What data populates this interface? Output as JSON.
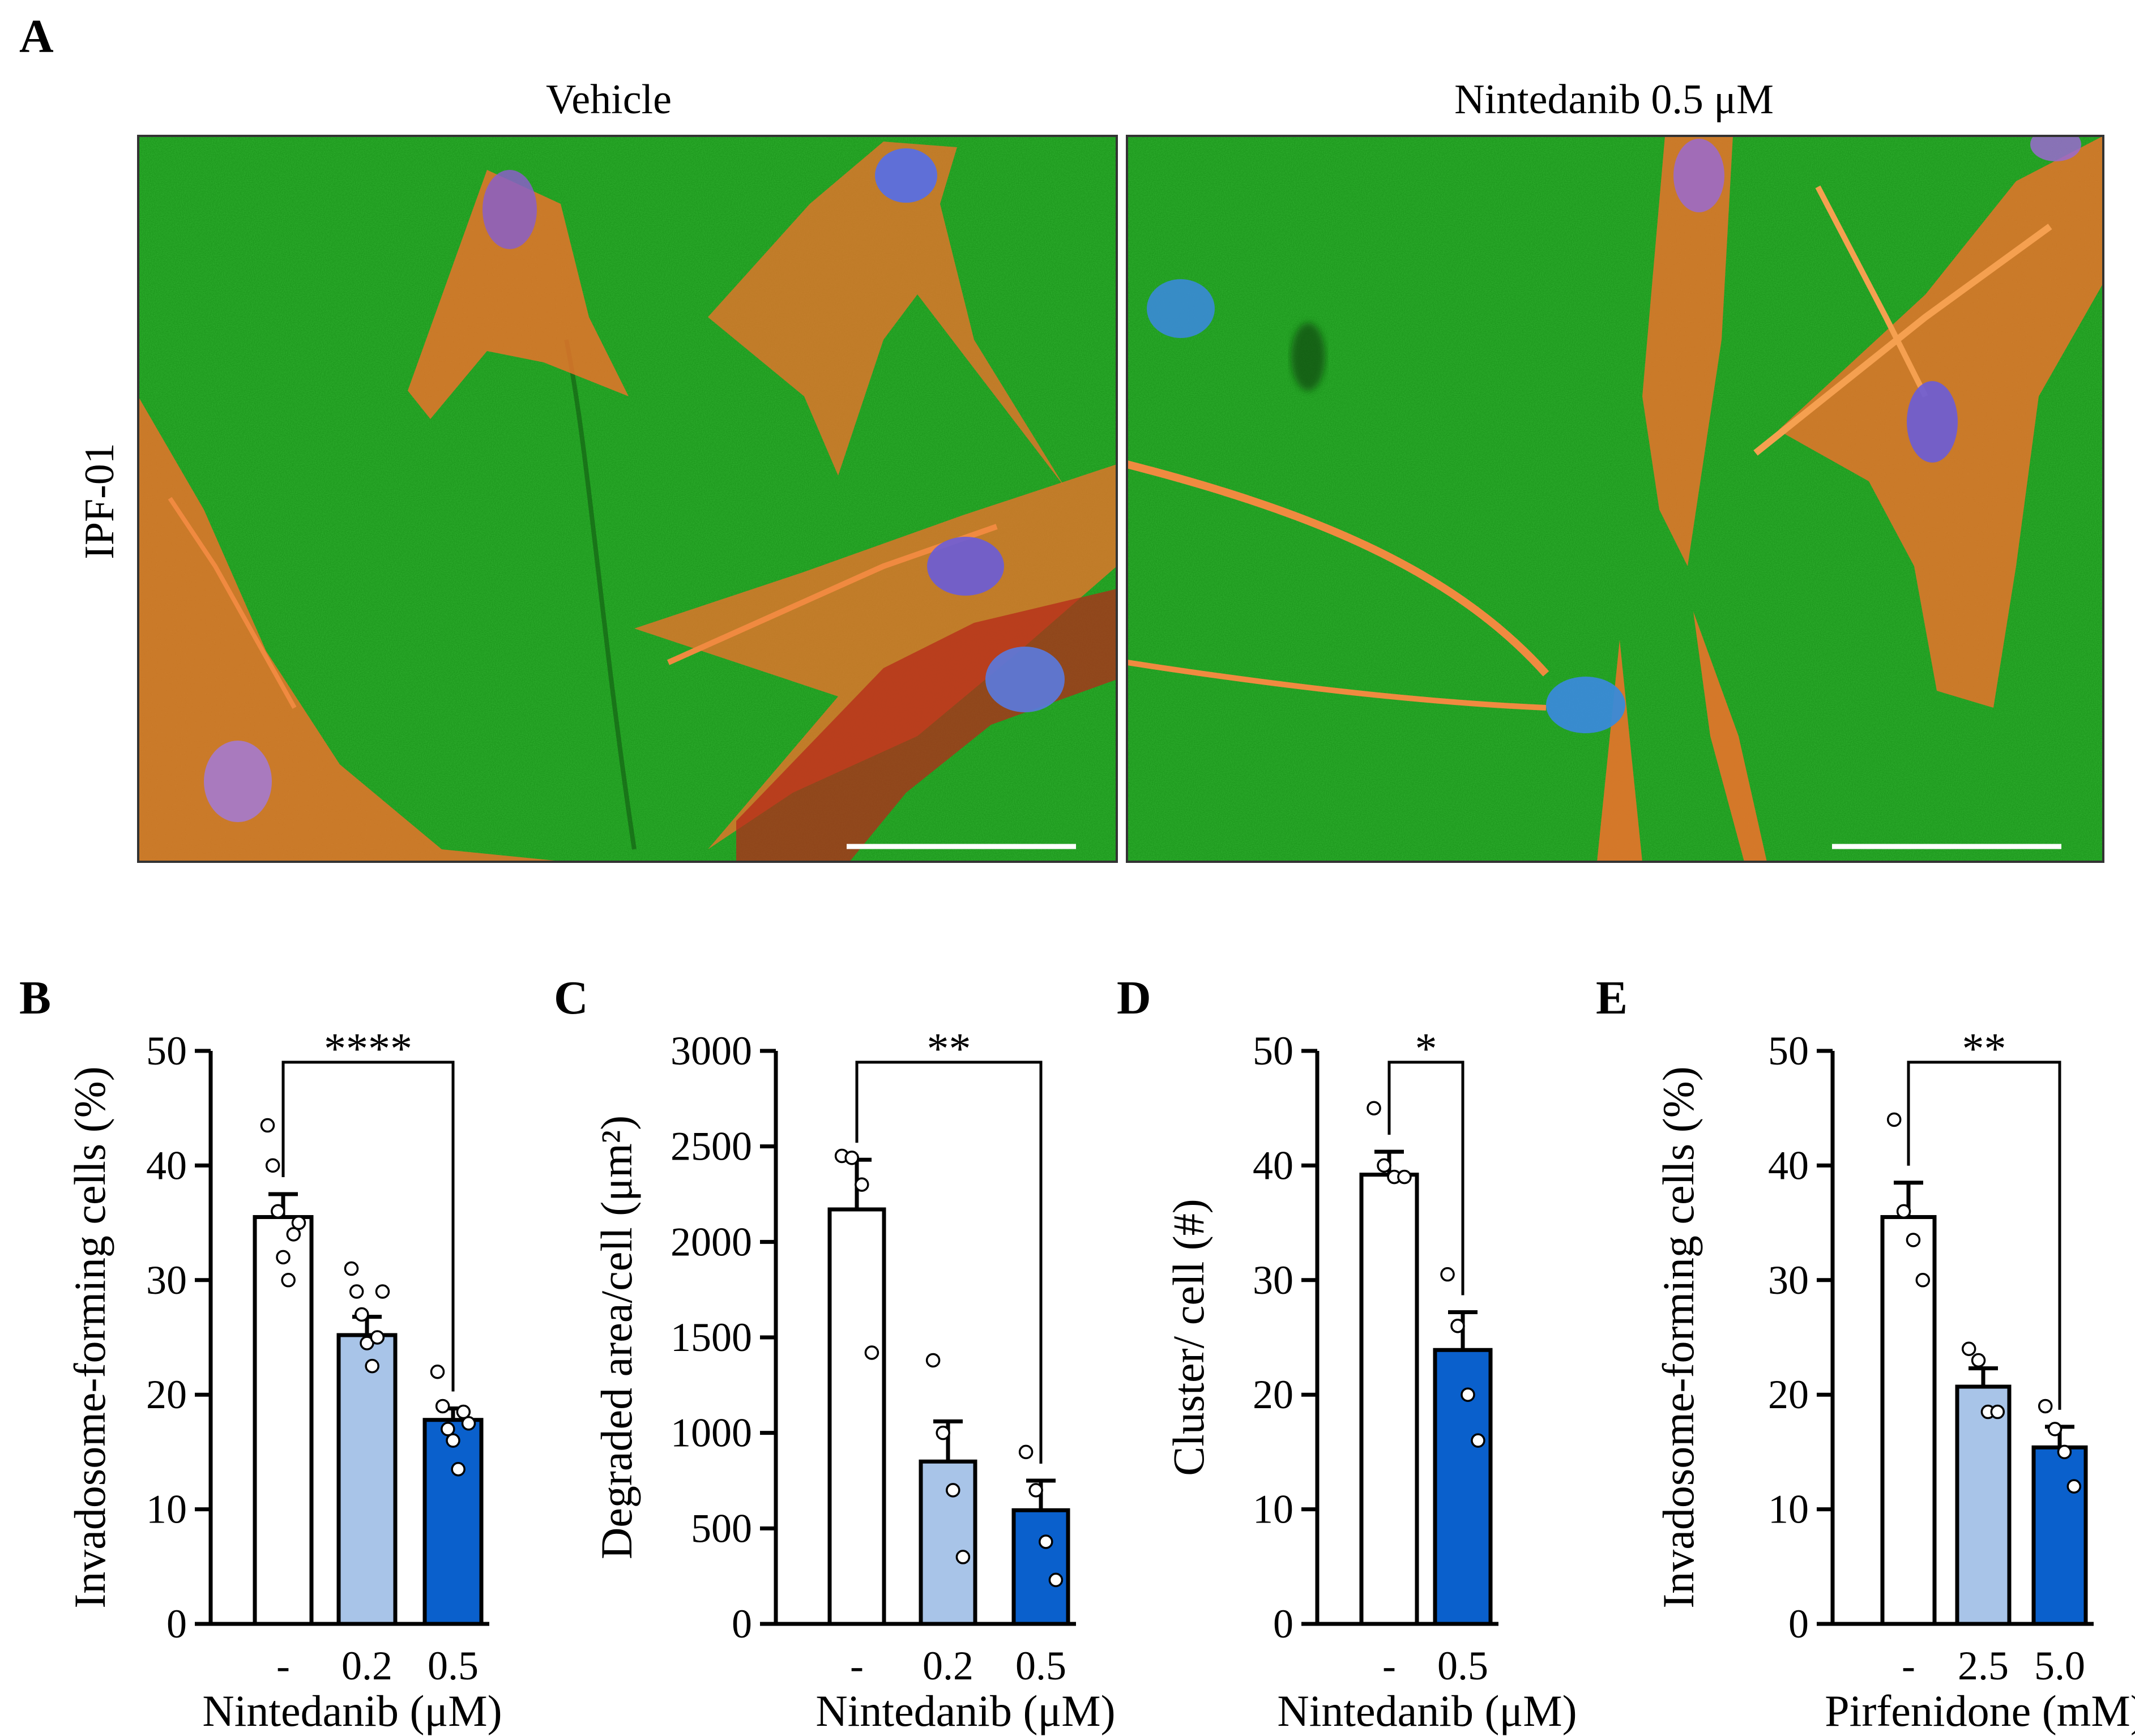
{
  "panelA": {
    "label": "A",
    "row_label": "IPF-01",
    "images": [
      {
        "title": "Vehicle"
      },
      {
        "title": "Nintedanib 0.5 μM"
      }
    ]
  },
  "colors": {
    "bar_vehicle": "#ffffff",
    "bar_low": "#a8c4e8",
    "bar_high": "#0a60cc",
    "background_green": "#1f9a1f",
    "actin_orange": "#e8732a",
    "nucleus_blue": "#5a6fe0"
  },
  "chart_data": [
    {
      "panel": "B",
      "type": "bar",
      "categories": [
        "-",
        "0.2",
        "0.5"
      ],
      "values": [
        35.5,
        25.2,
        17.8
      ],
      "errors": [
        2.0,
        1.6,
        1.0
      ],
      "points": [
        [
          43.5,
          40.0,
          36.0,
          32.0,
          30.0,
          34.0,
          35.0
        ],
        [
          31.0,
          29.0,
          27.0,
          24.5,
          22.5,
          25.0,
          29.0
        ],
        [
          22.0,
          19.0,
          17.0,
          16.0,
          13.5,
          18.5,
          17.5
        ]
      ],
      "colors": [
        "#ffffff",
        "#a8c4e8",
        "#0a60cc"
      ],
      "ylabel": "Invadosome-forming cells (%)",
      "xlabel": "Nintedanib (μM)",
      "ylim": [
        0,
        50
      ],
      "yticks": [
        "0",
        "10",
        "20",
        "30",
        "40",
        "50"
      ],
      "significance": "****",
      "sig_pair": [
        0,
        2
      ]
    },
    {
      "panel": "C",
      "type": "bar",
      "categories": [
        "-",
        "0.2",
        "0.5"
      ],
      "values": [
        2170,
        850,
        595
      ],
      "errors": [
        260,
        210,
        155
      ],
      "points": [
        [
          2450,
          2440,
          2300,
          1420
        ],
        [
          1380,
          1000,
          700,
          350
        ],
        [
          900,
          700,
          430,
          230
        ]
      ],
      "colors": [
        "#ffffff",
        "#a8c4e8",
        "#0a60cc"
      ],
      "ylabel": "Degraded area/cell (μm²)",
      "xlabel": "Nintedanib (μM)",
      "ylim": [
        0,
        3000
      ],
      "yticks": [
        "0",
        "500",
        "1000",
        "1500",
        "2000",
        "2500",
        "3000"
      ],
      "significance": "**",
      "sig_pair": [
        0,
        2
      ]
    },
    {
      "panel": "D",
      "type": "bar",
      "categories": [
        "-",
        "0.5"
      ],
      "values": [
        39.2,
        23.9
      ],
      "errors": [
        2.0,
        3.3
      ],
      "points": [
        [
          45.0,
          40.0,
          39.0,
          39.0
        ],
        [
          30.5,
          26.0,
          20.0,
          16.0
        ]
      ],
      "colors": [
        "#ffffff",
        "#0a60cc"
      ],
      "ylabel": "Cluster/ cell (#)",
      "xlabel": "Nintedanib (μM)",
      "ylim": [
        0,
        50
      ],
      "yticks": [
        "0",
        "10",
        "20",
        "30",
        "40",
        "50"
      ],
      "significance": "*",
      "sig_pair": [
        0,
        1
      ]
    },
    {
      "panel": "E",
      "type": "bar",
      "categories": [
        "-",
        "2.5",
        "5.0"
      ],
      "values": [
        35.5,
        20.7,
        15.4
      ],
      "errors": [
        3.0,
        1.6,
        1.8
      ],
      "points": [
        [
          44.0,
          36.0,
          33.5,
          30.0
        ],
        [
          24.0,
          23.0,
          18.5,
          18.5
        ],
        [
          19.0,
          17.0,
          15.0,
          12.0
        ]
      ],
      "colors": [
        "#ffffff",
        "#a8c4e8",
        "#0a60cc"
      ],
      "ylabel": "Invadosome-forming cells (%)",
      "xlabel": "Pirfenidone (mM)",
      "ylim": [
        0,
        50
      ],
      "yticks": [
        "0",
        "10",
        "20",
        "30",
        "40",
        "50"
      ],
      "significance": "**",
      "sig_pair": [
        0,
        2
      ]
    }
  ]
}
